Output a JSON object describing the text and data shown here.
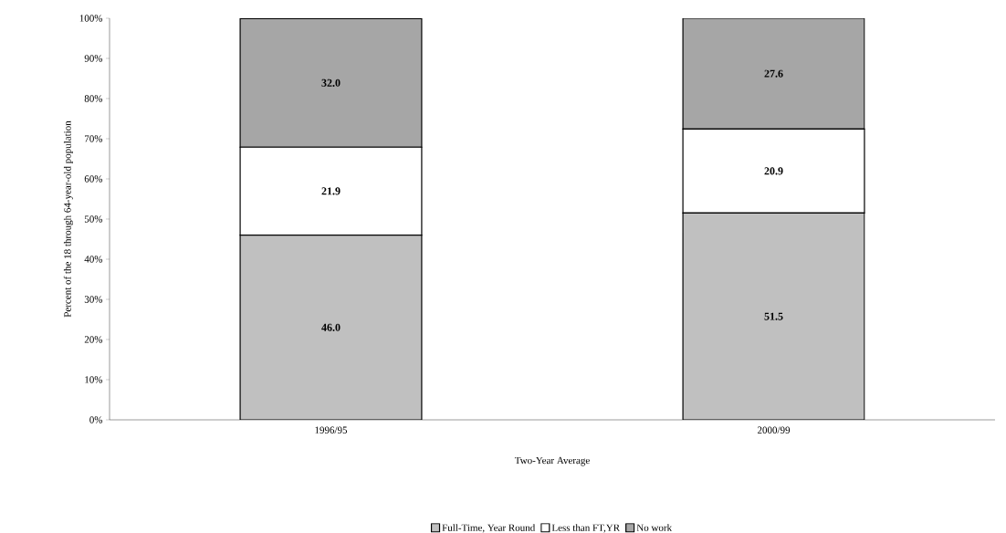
{
  "chart_data": {
    "type": "bar",
    "stacked": true,
    "xlabel": "Two-Year Average",
    "ylabel": "Percent of the 18 through 64-year-old population",
    "categories": [
      "1996/95",
      "2000/99"
    ],
    "series": [
      {
        "name": "Full-Time, Year Round",
        "color": "#c0c0c0",
        "values": [
          46.0,
          51.5
        ],
        "value_labels": [
          "46.0",
          "51.5"
        ]
      },
      {
        "name": "Less than FT,YR",
        "color": "#ffffff",
        "values": [
          21.9,
          20.9
        ],
        "value_labels": [
          "21.9",
          "20.9"
        ]
      },
      {
        "name": "No work",
        "color": "#a6a6a6",
        "values": [
          32.0,
          27.6
        ],
        "value_labels": [
          "32.0",
          "27.6"
        ]
      }
    ],
    "ylim": [
      0,
      100
    ],
    "yticks": [
      {
        "value": 0,
        "label": "0%"
      },
      {
        "value": 10,
        "label": "10%"
      },
      {
        "value": 20,
        "label": "20%"
      },
      {
        "value": 30,
        "label": "30%"
      },
      {
        "value": 40,
        "label": "40%"
      },
      {
        "value": 50,
        "label": "50%"
      },
      {
        "value": 60,
        "label": "60%"
      },
      {
        "value": 70,
        "label": "70%"
      },
      {
        "value": 80,
        "label": "80%"
      },
      {
        "value": 90,
        "label": "90%"
      },
      {
        "value": 100,
        "label": "100%"
      }
    ],
    "grid": false,
    "legend": "bottom"
  }
}
